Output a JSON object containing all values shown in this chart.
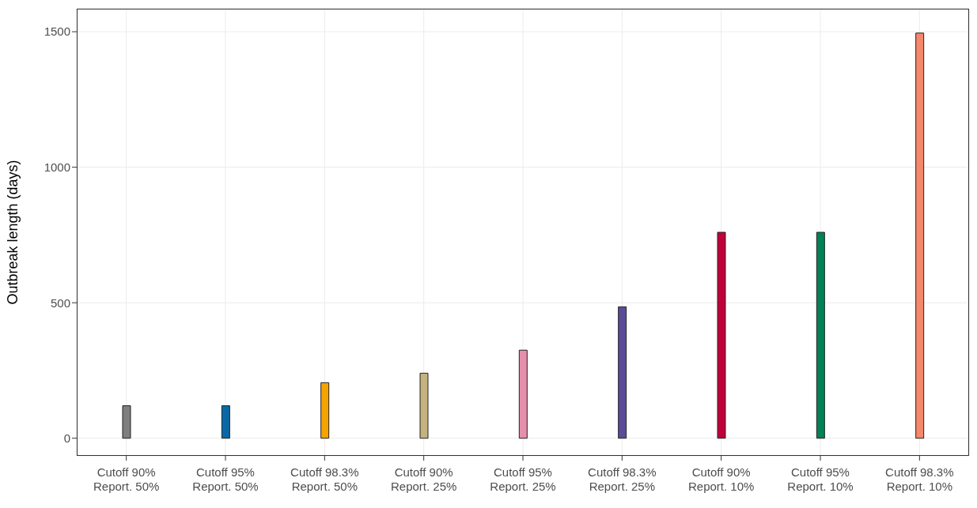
{
  "chart_data": {
    "type": "bar",
    "ylabel": "Outbreak length (days)",
    "categories": [
      "Cutoff 90%\nReport. 50%",
      "Cutoff 95%\nReport. 50%",
      "Cutoff 98.3%\nReport. 50%",
      "Cutoff 90%\nReport. 25%",
      "Cutoff 95%\nReport. 25%",
      "Cutoff 98.3%\nReport. 25%",
      "Cutoff 90%\nReport. 10%",
      "Cutoff 95%\nReport. 10%",
      "Cutoff 98.3%\nReport. 10%"
    ],
    "base": [
      0,
      0,
      0,
      0,
      0,
      0,
      0,
      0,
      0
    ],
    "values": [
      120,
      120,
      205,
      240,
      325,
      485,
      760,
      760,
      1495
    ],
    "colors": [
      "#7f7f7f",
      "#0a68a5",
      "#f5a300",
      "#c5b27e",
      "#e68fab",
      "#5b4c98",
      "#c0003b",
      "#008256",
      "#f5876a"
    ],
    "ylim": [
      -65,
      1585
    ],
    "yticks": [
      0,
      500,
      1000,
      1500
    ],
    "grid": true
  }
}
